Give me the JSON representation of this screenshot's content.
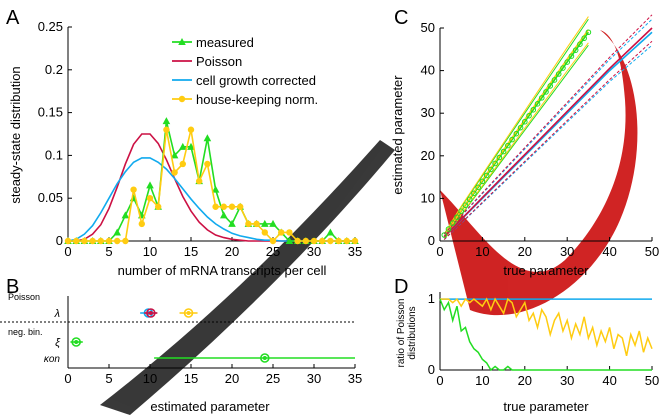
{
  "panels": {
    "A": {
      "letter": "A",
      "ylabel": "steady-state distribution",
      "xlabel": "number of mRNA transcripts per cell",
      "xticks": [
        "0",
        "5",
        "10",
        "15",
        "20",
        "25",
        "30",
        "35"
      ],
      "yticks": [
        "0",
        "0.05",
        "0.1",
        "0.15",
        "0.2",
        "0.25"
      ],
      "legend": {
        "measured": "measured",
        "poisson": "Poisson",
        "growth": "cell growth corrected",
        "hk": "house-keeping norm."
      }
    },
    "B": {
      "letter": "B",
      "xlabel": "estimated parameter",
      "xticks": [
        "0",
        "5",
        "10",
        "15",
        "20",
        "25",
        "30",
        "35"
      ],
      "group_poisson": "Poisson",
      "group_negbin": "neg. bin.",
      "row_lambda": "λ",
      "row_xi": "ξ",
      "row_kon": "κon"
    },
    "C": {
      "letter": "C",
      "ylabel": "estimated parameter",
      "xlabel": "true parameter",
      "xticks": [
        "0",
        "10",
        "20",
        "30",
        "40",
        "50"
      ],
      "yticks": [
        "0",
        "10",
        "20",
        "30",
        "40",
        "50"
      ]
    },
    "D": {
      "letter": "D",
      "ylabel_line1": "ratio of Poisson",
      "ylabel_line2": "distributions",
      "xlabel": "true parameter",
      "xticks": [
        "0",
        "10",
        "20",
        "30",
        "40",
        "50"
      ],
      "yticks": [
        "0",
        "1"
      ]
    }
  },
  "colors": {
    "measured": "#22dd22",
    "poisson": "#cc1144",
    "growth": "#11aaee",
    "hk": "#ffcc11",
    "axis": "#000000",
    "watermark": "#cc1111"
  },
  "chart_data": [
    {
      "panel": "A",
      "type": "line",
      "xlim": [
        0,
        35
      ],
      "ylim": [
        0,
        0.25
      ],
      "series": [
        {
          "name": "measured",
          "color": "#22dd22",
          "marker": "triangle",
          "x": [
            0,
            1,
            2,
            3,
            4,
            5,
            6,
            7,
            8,
            9,
            10,
            11,
            12,
            13,
            14,
            15,
            16,
            17,
            18,
            19,
            20,
            21,
            22,
            23,
            24,
            25,
            26,
            27,
            28,
            29,
            30,
            31,
            32,
            33,
            34,
            35
          ],
          "y": [
            0,
            0,
            0,
            0,
            0,
            0,
            0.01,
            0.03,
            0.05,
            0.03,
            0.065,
            0.04,
            0.14,
            0.1,
            0.11,
            0.11,
            0.07,
            0.12,
            0.06,
            0.03,
            0.02,
            0.04,
            0.02,
            0.02,
            0.02,
            0.02,
            0.01,
            0,
            0,
            0,
            0,
            0,
            0.01,
            0,
            0,
            0
          ]
        },
        {
          "name": "Poisson",
          "color": "#cc1144",
          "x": [
            0,
            1,
            2,
            3,
            4,
            5,
            6,
            7,
            8,
            9,
            10,
            11,
            12,
            13,
            14,
            15,
            16,
            17,
            18,
            19,
            20,
            21,
            22,
            23,
            24,
            25,
            26,
            27,
            28,
            29,
            30,
            31,
            32,
            33,
            34,
            35
          ],
          "y": [
            0,
            0,
            0.002,
            0.008,
            0.019,
            0.038,
            0.063,
            0.09,
            0.113,
            0.125,
            0.125,
            0.114,
            0.095,
            0.073,
            0.052,
            0.035,
            0.022,
            0.013,
            0.007,
            0.004,
            0.002,
            0.001,
            0,
            0,
            0,
            0,
            0,
            0,
            0,
            0,
            0,
            0,
            0,
            0,
            0,
            0
          ]
        },
        {
          "name": "cell growth corrected",
          "color": "#11aaee",
          "x": [
            0,
            1,
            2,
            3,
            4,
            5,
            6,
            7,
            8,
            9,
            10,
            11,
            12,
            13,
            14,
            15,
            16,
            17,
            18,
            19,
            20,
            21,
            22,
            23,
            24,
            25,
            26,
            27,
            28,
            29,
            30,
            31,
            32,
            33,
            34,
            35
          ],
          "y": [
            0,
            0.002,
            0.008,
            0.018,
            0.033,
            0.05,
            0.067,
            0.081,
            0.092,
            0.097,
            0.097,
            0.092,
            0.084,
            0.073,
            0.061,
            0.049,
            0.038,
            0.028,
            0.02,
            0.014,
            0.009,
            0.006,
            0.004,
            0.002,
            0.001,
            0.001,
            0,
            0,
            0,
            0,
            0,
            0,
            0,
            0,
            0,
            0
          ]
        },
        {
          "name": "house-keeping norm.",
          "color": "#ffcc11",
          "marker": "circle",
          "x": [
            0,
            1,
            2,
            3,
            4,
            5,
            6,
            7,
            8,
            9,
            10,
            11,
            12,
            13,
            14,
            15,
            16,
            17,
            18,
            19,
            20,
            21,
            22,
            23,
            24,
            25,
            26,
            27,
            28,
            29,
            30,
            31,
            32,
            33,
            34,
            35
          ],
          "y": [
            0,
            0,
            0,
            0,
            0,
            0,
            0,
            0,
            0.06,
            0.02,
            0.05,
            0.04,
            0.13,
            0.08,
            0.09,
            0.13,
            0.07,
            0.09,
            0.04,
            0.04,
            0.04,
            0.04,
            0.02,
            0.02,
            0.01,
            0,
            0.01,
            0.01,
            0,
            0,
            0,
            0,
            0,
            0,
            0,
            0
          ]
        }
      ]
    },
    {
      "panel": "B",
      "type": "scatter",
      "xlim": [
        0,
        35
      ],
      "points": [
        {
          "row": "λ",
          "x": 9.8,
          "low": 8.8,
          "high": 10.8,
          "color": "#11aaee"
        },
        {
          "row": "λ",
          "x": 10.1,
          "low": 9.3,
          "high": 10.9,
          "color": "#cc1144"
        },
        {
          "row": "λ",
          "x": 14.7,
          "low": 13.6,
          "high": 15.8,
          "color": "#ffcc11"
        },
        {
          "row": "ξ",
          "x": 1.0,
          "low": 0.3,
          "high": 1.8,
          "color": "#22dd22"
        },
        {
          "row": "κon",
          "x": 24.0,
          "low": 10.5,
          "high": 35.0,
          "color": "#22dd22"
        }
      ]
    },
    {
      "panel": "C",
      "type": "line",
      "xlim": [
        0,
        50
      ],
      "ylim": [
        0,
        50
      ],
      "series": [
        {
          "name": "green",
          "color": "#22dd22",
          "x": [
            1,
            5,
            10,
            15,
            20,
            25,
            30,
            35
          ],
          "y": [
            1,
            7,
            14,
            21,
            28,
            35,
            42,
            49
          ]
        },
        {
          "name": "yellow",
          "color": "#ffcc11",
          "x": [
            1,
            5,
            10,
            15,
            20,
            25,
            30,
            35
          ],
          "y": [
            1,
            7.2,
            14.3,
            21.4,
            28.5,
            35.6,
            42.7,
            49.6
          ]
        },
        {
          "name": "blue",
          "color": "#11aaee",
          "x": [
            1,
            10,
            20,
            30,
            40,
            50
          ],
          "y": [
            1,
            10,
            20,
            30,
            40,
            49
          ]
        },
        {
          "name": "red",
          "color": "#cc1144",
          "x": [
            1,
            10,
            20,
            30,
            40,
            50
          ],
          "y": [
            1,
            10.2,
            20.3,
            30.4,
            40.5,
            50
          ]
        }
      ]
    },
    {
      "panel": "D",
      "type": "line",
      "xlim": [
        0,
        50
      ],
      "ylim": [
        0,
        1.1
      ],
      "series": [
        {
          "name": "blue",
          "color": "#11aaee",
          "x": [
            0,
            50
          ],
          "y": [
            1,
            1
          ]
        },
        {
          "name": "yellow",
          "color": "#ffcc11",
          "x": [
            0,
            1,
            2,
            3,
            4,
            5,
            6,
            7,
            8,
            9,
            10,
            11,
            12,
            13,
            14,
            15,
            16,
            17,
            18,
            19,
            20,
            21,
            22,
            23,
            24,
            25,
            26,
            27,
            28,
            29,
            30,
            31,
            32,
            33,
            34,
            35,
            36,
            37,
            38,
            39,
            40,
            41,
            42,
            43,
            44,
            45,
            46,
            47,
            48,
            49,
            50
          ],
          "y": [
            1,
            1,
            1,
            0.95,
            1,
            0.9,
            1,
            0.95,
            1,
            0.95,
            0.9,
            1,
            0.85,
            1,
            0.9,
            0.8,
            1,
            0.95,
            0.75,
            0.85,
            0.95,
            0.7,
            0.8,
            0.6,
            0.85,
            0.75,
            0.5,
            0.7,
            0.8,
            0.55,
            0.7,
            0.45,
            0.65,
            0.5,
            0.75,
            0.45,
            0.6,
            0.35,
            0.55,
            0.4,
            0.6,
            0.3,
            0.5,
            0.45,
            0.2,
            0.5,
            0.35,
            0.55,
            0.25,
            0.45,
            0.3
          ]
        },
        {
          "name": "green",
          "color": "#22dd22",
          "x": [
            0,
            1,
            2,
            3,
            4,
            5,
            6,
            7,
            8,
            9,
            10,
            11,
            12,
            13,
            14,
            15,
            16,
            17,
            18,
            19,
            20,
            25,
            30,
            35,
            40,
            45,
            50
          ],
          "y": [
            1,
            0.85,
            0.95,
            0.7,
            0.9,
            0.55,
            0.6,
            0.4,
            0.3,
            0.25,
            0.15,
            0.1,
            0,
            0.05,
            0,
            0,
            0.05,
            0,
            0,
            0,
            0,
            0,
            0,
            0,
            0,
            0,
            0
          ]
        }
      ]
    }
  ]
}
